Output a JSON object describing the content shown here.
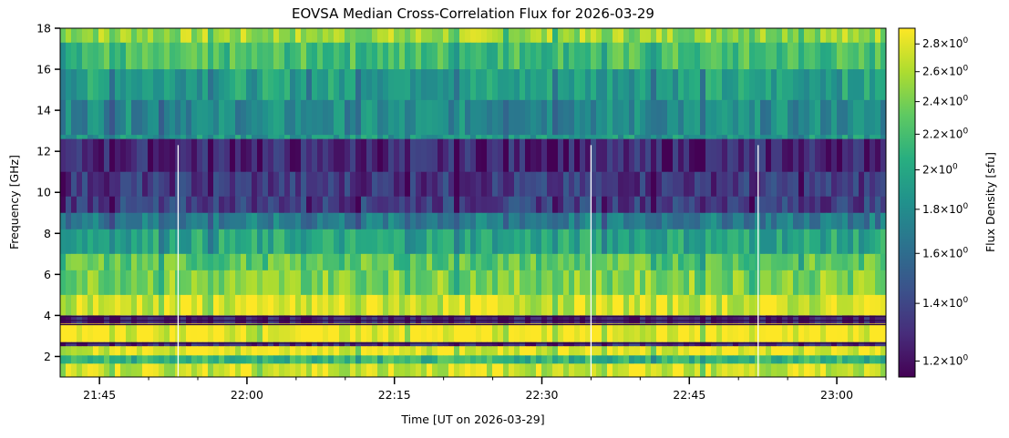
{
  "chart_data": {
    "type": "heatmap",
    "title": "EOVSA Median Cross-Correlation Flux for 2026-03-29",
    "xlabel": "Time [UT on 2026-03-29]",
    "ylabel": "Frequency [GHz]",
    "colorbar_label": "Flux Density [sfu]",
    "colormap": "viridis",
    "colorbar_scale": "log",
    "x_range": [
      "21:41",
      "23:05"
    ],
    "y_range": [
      1.0,
      18.0
    ],
    "x_ticks": [
      "21:45",
      "22:00",
      "22:15",
      "22:30",
      "22:45",
      "23:00"
    ],
    "y_ticks": [
      2,
      4,
      6,
      8,
      10,
      12,
      14,
      16,
      18
    ],
    "colorbar_range": [
      1.15,
      2.92
    ],
    "colorbar_ticks": [
      {
        "value": 1.2,
        "base": "1.2",
        "times": "×",
        "exp_base": "10",
        "exp": "0"
      },
      {
        "value": 1.4,
        "base": "1.4",
        "times": "×",
        "exp_base": "10",
        "exp": "0"
      },
      {
        "value": 1.6,
        "base": "1.6",
        "times": "×",
        "exp_base": "10",
        "exp": "0"
      },
      {
        "value": 1.8,
        "base": "1.8",
        "times": "×",
        "exp_base": "10",
        "exp": "0"
      },
      {
        "value": 2.0,
        "base": "2",
        "times": "×",
        "exp_base": "10",
        "exp": "0"
      },
      {
        "value": 2.2,
        "base": "2.2",
        "times": "×",
        "exp_base": "10",
        "exp": "0"
      },
      {
        "value": 2.4,
        "base": "2.4",
        "times": "×",
        "exp_base": "10",
        "exp": "0"
      },
      {
        "value": 2.6,
        "base": "2.6",
        "times": "×",
        "exp_base": "10",
        "exp": "0"
      },
      {
        "value": 2.8,
        "base": "2.8",
        "times": "×",
        "exp_base": "10",
        "exp": "0"
      }
    ],
    "frequency_profile": [
      {
        "y_top": 18.0,
        "y_bottom": 17.3,
        "flux": 2.55
      },
      {
        "y_top": 17.3,
        "y_bottom": 16.0,
        "flux": 2.2
      },
      {
        "y_top": 16.0,
        "y_bottom": 14.5,
        "flux": 1.95
      },
      {
        "y_top": 14.5,
        "y_bottom": 12.8,
        "flux": 1.8
      },
      {
        "y_top": 12.8,
        "y_bottom": 12.6,
        "flux": 1.9
      },
      {
        "y_top": 12.6,
        "y_bottom": 11.0,
        "flux": 1.28
      },
      {
        "y_top": 11.0,
        "y_bottom": 9.8,
        "flux": 1.35
      },
      {
        "y_top": 9.8,
        "y_bottom": 9.0,
        "flux": 1.38
      },
      {
        "y_top": 9.0,
        "y_bottom": 8.2,
        "flux": 1.7
      },
      {
        "y_top": 8.2,
        "y_bottom": 7.0,
        "flux": 2.0
      },
      {
        "y_top": 7.0,
        "y_bottom": 6.2,
        "flux": 2.3
      },
      {
        "y_top": 6.2,
        "y_bottom": 5.0,
        "flux": 2.45
      },
      {
        "y_top": 5.0,
        "y_bottom": 4.0,
        "flux": 2.75
      },
      {
        "y_top": 4.0,
        "y_bottom": 3.6,
        "flux": 1.25
      },
      {
        "y_top": 3.6,
        "y_bottom": 2.7,
        "flux": 2.9
      },
      {
        "y_top": 2.7,
        "y_bottom": 2.5,
        "flux": 1.3
      },
      {
        "y_top": 2.5,
        "y_bottom": 2.05,
        "flux": 2.85
      },
      {
        "y_top": 2.05,
        "y_bottom": 1.65,
        "flux": 2.1
      },
      {
        "y_top": 1.65,
        "y_bottom": 1.0,
        "flux": 2.75
      }
    ],
    "white_gaps": [
      "21:53",
      "22:35",
      "22:52"
    ]
  }
}
